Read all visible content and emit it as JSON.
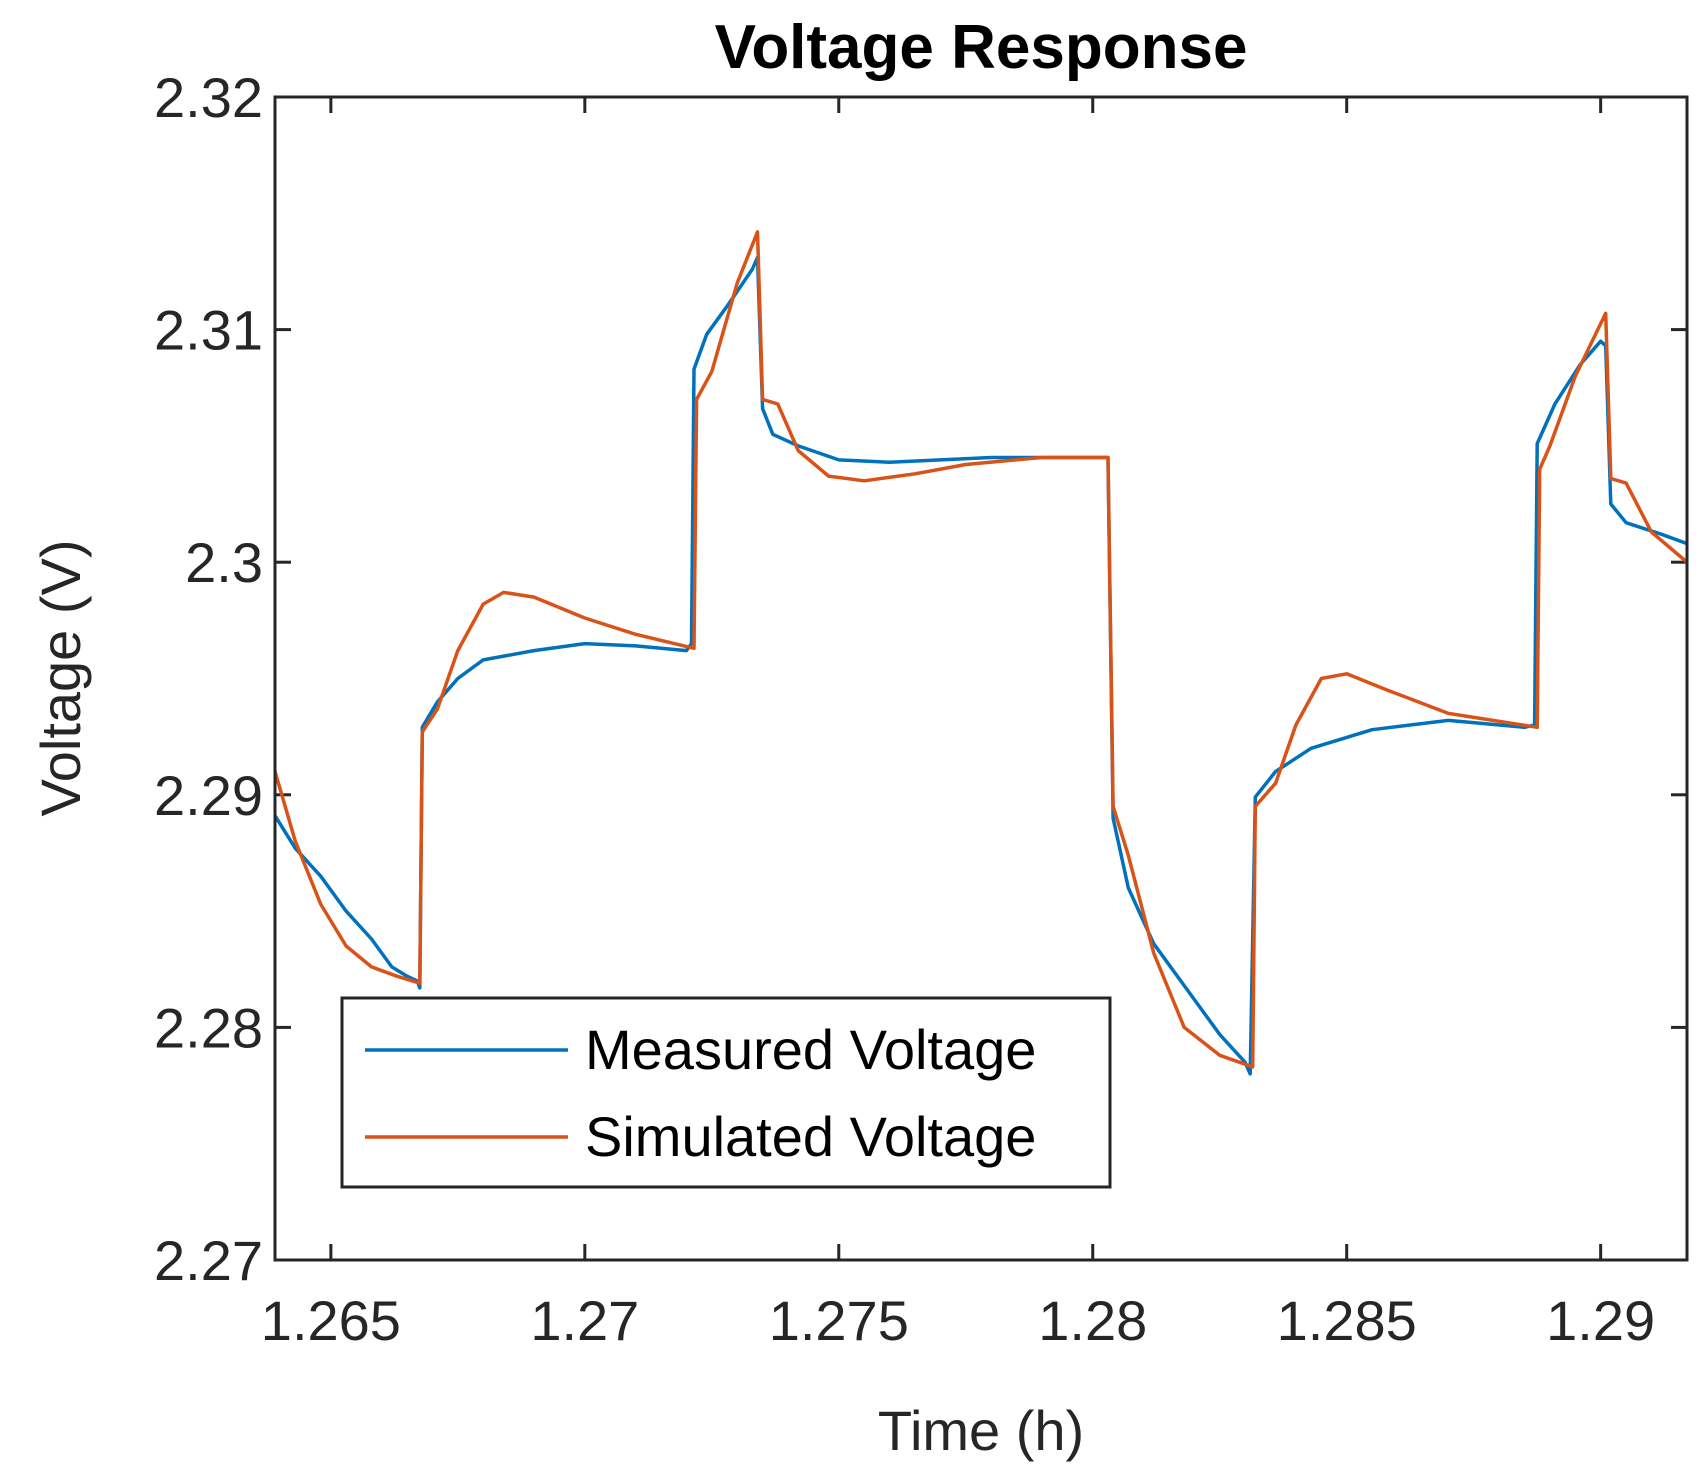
{
  "chart_data": {
    "type": "line",
    "title": "Voltage Response",
    "xlabel": "Time (h)",
    "ylabel": "Voltage (V)",
    "xlim": [
      1.2639,
      1.2917
    ],
    "ylim": [
      2.27,
      2.32
    ],
    "xticks": [
      1.265,
      1.27,
      1.275,
      1.28,
      1.285,
      1.29
    ],
    "xtick_labels": [
      "1.265",
      "1.27",
      "1.275",
      "1.28",
      "1.285",
      "1.29"
    ],
    "yticks": [
      2.27,
      2.28,
      2.29,
      2.3,
      2.31,
      2.32
    ],
    "ytick_labels": [
      "2.27",
      "2.28",
      "2.29",
      "2.3",
      "2.31",
      "2.32"
    ],
    "grid": false,
    "legend_position": "lower-left",
    "series": [
      {
        "name": "Measured Voltage",
        "color": "#0072BD",
        "points": [
          [
            1.2639,
            2.2891
          ],
          [
            1.2643,
            2.2877
          ],
          [
            1.2648,
            2.2865
          ],
          [
            1.2653,
            2.285
          ],
          [
            1.2658,
            2.2838
          ],
          [
            1.2662,
            2.2826
          ],
          [
            1.2665,
            2.2822
          ],
          [
            1.2667,
            2.282
          ],
          [
            1.26675,
            2.2817
          ],
          [
            1.2668,
            2.2929
          ],
          [
            1.2671,
            2.294
          ],
          [
            1.2675,
            2.295
          ],
          [
            1.268,
            2.2958
          ],
          [
            1.269,
            2.2962
          ],
          [
            1.27,
            2.2965
          ],
          [
            1.271,
            2.2964
          ],
          [
            1.272,
            2.2962
          ],
          [
            1.2721,
            2.2965
          ],
          [
            1.27215,
            2.3083
          ],
          [
            1.2724,
            2.3098
          ],
          [
            1.2728,
            2.311
          ],
          [
            1.2733,
            2.3126
          ],
          [
            1.2734,
            2.3131
          ],
          [
            1.2735,
            2.3066
          ],
          [
            1.2737,
            2.3055
          ],
          [
            1.2742,
            2.305
          ],
          [
            1.275,
            2.3044
          ],
          [
            1.276,
            2.3043
          ],
          [
            1.277,
            2.3044
          ],
          [
            1.278,
            2.3045
          ],
          [
            1.2803,
            2.3045
          ],
          [
            1.2804,
            2.289
          ],
          [
            1.2807,
            2.286
          ],
          [
            1.2812,
            2.2836
          ],
          [
            1.282,
            2.2812
          ],
          [
            1.2825,
            2.2797
          ],
          [
            1.283,
            2.2785
          ],
          [
            1.2831,
            2.278
          ],
          [
            1.2832,
            2.2899
          ],
          [
            1.2836,
            2.291
          ],
          [
            1.2843,
            2.292
          ],
          [
            1.2855,
            2.2928
          ],
          [
            1.287,
            2.2932
          ],
          [
            1.2885,
            2.2929
          ],
          [
            1.2887,
            2.293
          ],
          [
            1.28875,
            2.3051
          ],
          [
            1.2891,
            2.3068
          ],
          [
            1.2896,
            2.3085
          ],
          [
            1.29,
            2.3095
          ],
          [
            1.2901,
            2.3093
          ],
          [
            1.2902,
            2.3025
          ],
          [
            1.2905,
            2.3017
          ],
          [
            1.2912,
            2.3012
          ],
          [
            1.2917,
            2.3008
          ]
        ]
      },
      {
        "name": "Simulated Voltage",
        "color": "#D95319",
        "points": [
          [
            1.2639,
            2.291
          ],
          [
            1.2643,
            2.288
          ],
          [
            1.2648,
            2.2853
          ],
          [
            1.2653,
            2.2835
          ],
          [
            1.2658,
            2.2826
          ],
          [
            1.2663,
            2.2822
          ],
          [
            1.26675,
            2.2819
          ],
          [
            1.2668,
            2.2927
          ],
          [
            1.2671,
            2.2937
          ],
          [
            1.2675,
            2.2962
          ],
          [
            1.268,
            2.2982
          ],
          [
            1.2684,
            2.2987
          ],
          [
            1.269,
            2.2985
          ],
          [
            1.27,
            2.2976
          ],
          [
            1.271,
            2.2969
          ],
          [
            1.27215,
            2.2963
          ],
          [
            1.2722,
            2.307
          ],
          [
            1.2725,
            2.3082
          ],
          [
            1.273,
            2.312
          ],
          [
            1.2734,
            2.3142
          ],
          [
            1.2735,
            2.307
          ],
          [
            1.2738,
            2.3068
          ],
          [
            1.2742,
            2.3048
          ],
          [
            1.2748,
            2.3037
          ],
          [
            1.2755,
            2.3035
          ],
          [
            1.2765,
            2.3038
          ],
          [
            1.2775,
            2.3042
          ],
          [
            1.279,
            2.3045
          ],
          [
            1.2803,
            2.3045
          ],
          [
            1.2804,
            2.2895
          ],
          [
            1.2807,
            2.2874
          ],
          [
            1.2812,
            2.2832
          ],
          [
            1.2818,
            2.28
          ],
          [
            1.2825,
            2.2788
          ],
          [
            1.28315,
            2.2783
          ],
          [
            1.2832,
            2.2895
          ],
          [
            1.2836,
            2.2905
          ],
          [
            1.284,
            2.293
          ],
          [
            1.2845,
            2.295
          ],
          [
            1.285,
            2.2952
          ],
          [
            1.2858,
            2.2945
          ],
          [
            1.287,
            2.2935
          ],
          [
            1.28875,
            2.2929
          ],
          [
            1.2888,
            2.304
          ],
          [
            1.289,
            2.305
          ],
          [
            1.2895,
            2.308
          ],
          [
            1.2901,
            2.3107
          ],
          [
            1.2902,
            2.3036
          ],
          [
            1.2905,
            2.3034
          ],
          [
            1.291,
            2.3013
          ],
          [
            1.2917,
            2.3
          ]
        ]
      }
    ]
  }
}
